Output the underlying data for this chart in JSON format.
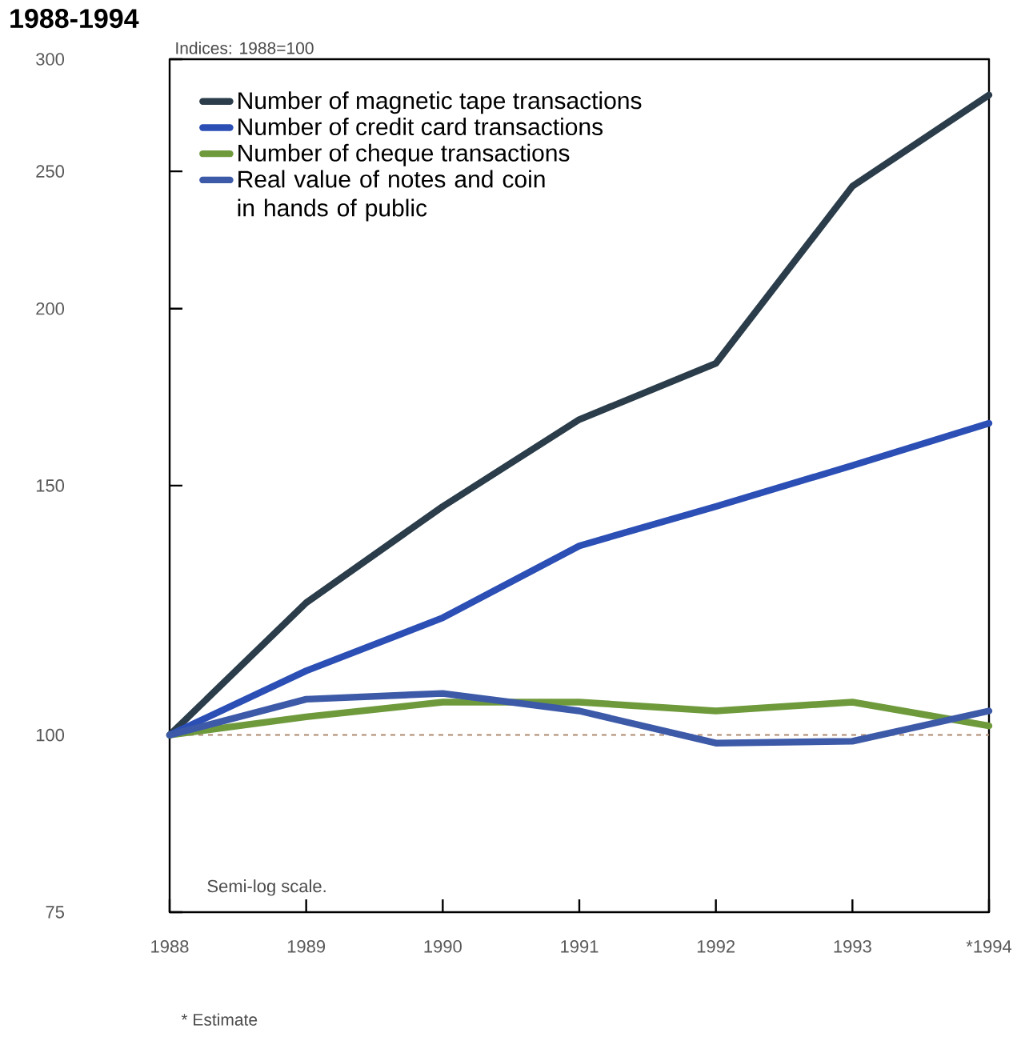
{
  "chart_data": {
    "type": "line",
    "title": "1988-1994",
    "annotations": [
      "Indices: 1988=100",
      "Semi-log scale.",
      "* Estimate"
    ],
    "x": [
      1988,
      1989,
      1990,
      1991,
      1992,
      1993,
      1994
    ],
    "xlim": [
      1988,
      1994
    ],
    "xticks": [
      1988,
      1989,
      1990,
      1991,
      1992,
      1993,
      {
        "value": 1994,
        "label": "*1994"
      }
    ],
    "ylim": [
      75,
      300
    ],
    "yticks": [
      75,
      100,
      150,
      200,
      250,
      300
    ],
    "log": true,
    "legend": "top left",
    "marker": "none",
    "line_style": "solid",
    "series": [
      {
        "name": "Number of magnetic tape transactions",
        "color": "#2b3d4a",
        "values": [
          100,
          124,
          145,
          167,
          183,
          244,
          283
        ]
      },
      {
        "name": "Number of credit card transactions",
        "color": "#2c4fb5",
        "values": [
          100,
          111,
          121,
          136,
          145,
          155,
          166
        ]
      },
      {
        "name": "Number of cheque transactions",
        "color": "#6f9a3c",
        "values": [
          100,
          103,
          105.5,
          105.5,
          104,
          105.5,
          101.5
        ]
      },
      {
        "name": "Real value of notes and coin in hands of public",
        "color": "#3d5aa8",
        "values": [
          100,
          106,
          107,
          104,
          98.7,
          99,
          104
        ]
      }
    ],
    "ref_lines": [
      {
        "axis": "y",
        "value": 100,
        "color": "#b08a70",
        "line_style": "dashed"
      }
    ]
  }
}
